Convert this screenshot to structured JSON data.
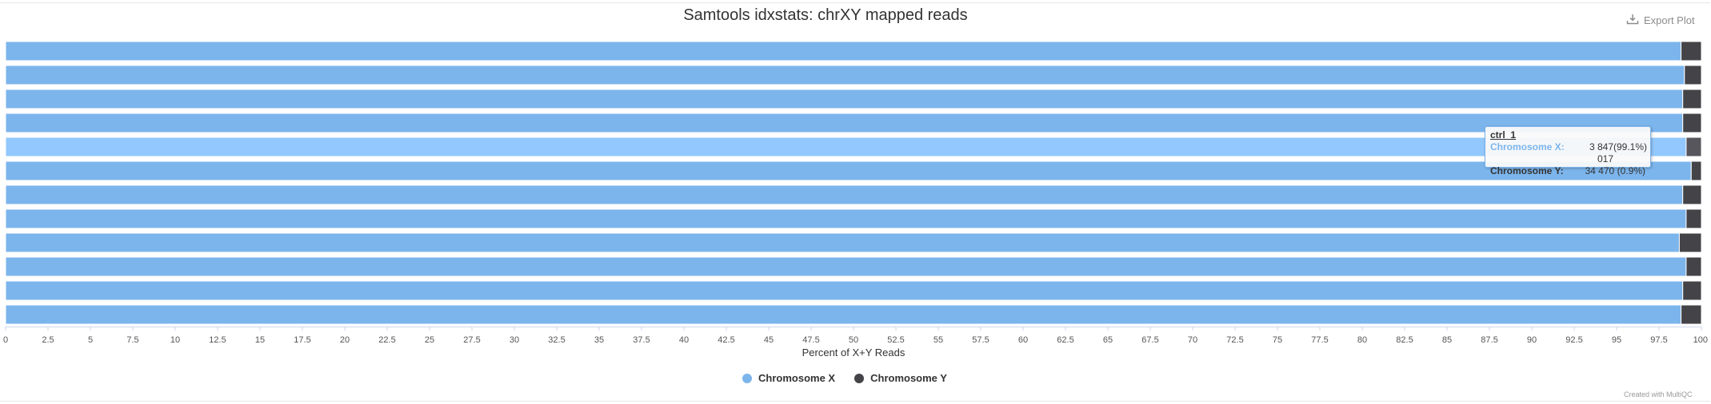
{
  "header": {
    "title": "Samtools idxstats: chrXY mapped reads",
    "export_label": "Export Plot"
  },
  "credit": "Created with MultiQC",
  "colors": {
    "chromosome_x": "#7cb5ec",
    "chromosome_y": "#434348",
    "highlight_x": "#92c8fd",
    "highlight_y": "#56565c"
  },
  "tooltip": {
    "sample": "ctrl_1",
    "rows": [
      {
        "name": "Chromosome X:",
        "value": "3 847 017",
        "pct": "(99.1%)"
      },
      {
        "name": "Chromosome Y:",
        "value": "34 470",
        "pct": "(0.9%)"
      }
    ]
  },
  "chart_data": {
    "type": "bar",
    "orientation": "horizontal",
    "stacking": "percent",
    "title": "Samtools idxstats: chrXY mapped reads",
    "xlabel": "Percent of X+Y Reads",
    "xlim": [
      0,
      100
    ],
    "ticks": [
      "0",
      "2.5",
      "5",
      "7.5",
      "10",
      "12.5",
      "15",
      "17.5",
      "20",
      "22.5",
      "25",
      "27.5",
      "30",
      "32.5",
      "35",
      "37.5",
      "40",
      "42.5",
      "45",
      "47.5",
      "50",
      "52.5",
      "55",
      "57.5",
      "60",
      "62.5",
      "65",
      "67.5",
      "70",
      "72.5",
      "75",
      "77.5",
      "80",
      "82.5",
      "85",
      "87.5",
      "90",
      "92.5",
      "95",
      "97.5",
      "100"
    ],
    "highlighted_index": 4,
    "series": [
      {
        "name": "Chromosome X",
        "values": [
          98.8,
          99.0,
          98.9,
          98.9,
          99.1,
          99.4,
          98.9,
          99.1,
          98.7,
          99.1,
          98.9,
          98.8
        ]
      },
      {
        "name": "Chromosome Y",
        "values": [
          1.2,
          1.0,
          1.1,
          1.1,
          0.9,
          0.6,
          1.1,
          0.9,
          1.3,
          0.9,
          1.1,
          1.2
        ]
      }
    ]
  },
  "legend": {
    "items": [
      {
        "label": "Chromosome X"
      },
      {
        "label": "Chromosome Y"
      }
    ]
  }
}
